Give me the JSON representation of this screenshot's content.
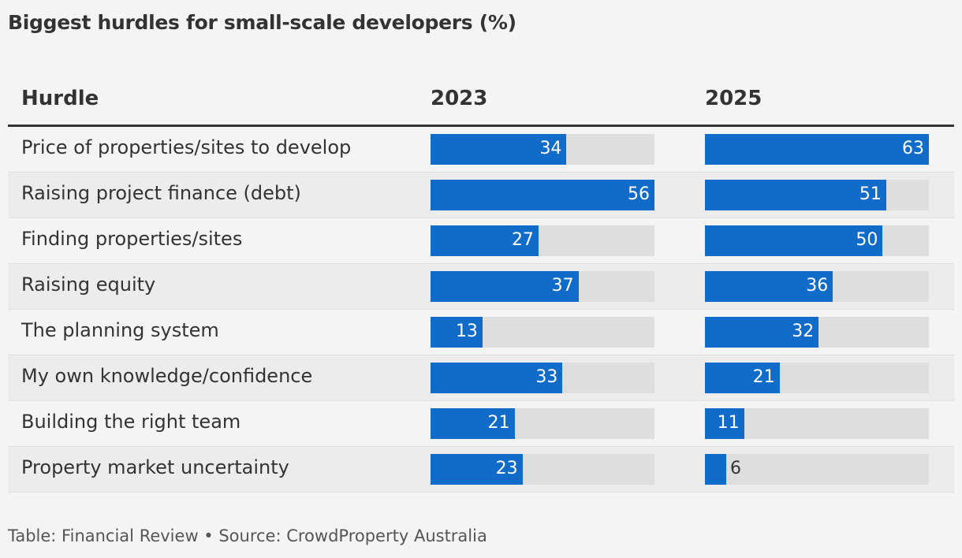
{
  "title": "Biggest hurdles for small-scale developers (%)",
  "footer": "Table: Financial Review • Source: CrowdProperty Australia",
  "colors": {
    "bar": "#116cc9",
    "track": "#dedede",
    "row_alt": "#ececec",
    "background": "#f4f4f4"
  },
  "chart_data": {
    "type": "table",
    "columns": [
      "Hurdle",
      "2023",
      "2025"
    ],
    "rows": [
      {
        "hurdle": "Price of properties/sites to develop",
        "v2023": 34,
        "v2025": 63
      },
      {
        "hurdle": "Raising project finance (debt)",
        "v2023": 56,
        "v2025": 51
      },
      {
        "hurdle": "Finding properties/sites",
        "v2023": 27,
        "v2025": 50
      },
      {
        "hurdle": "Raising equity",
        "v2023": 37,
        "v2025": 36
      },
      {
        "hurdle": "The planning system",
        "v2023": 13,
        "v2025": 32
      },
      {
        "hurdle": "My own knowledge/confidence",
        "v2023": 33,
        "v2025": 21
      },
      {
        "hurdle": "Building the right team",
        "v2023": 21,
        "v2025": 11
      },
      {
        "hurdle": "Property market uncertainty",
        "v2023": 23,
        "v2025": 6
      }
    ]
  }
}
